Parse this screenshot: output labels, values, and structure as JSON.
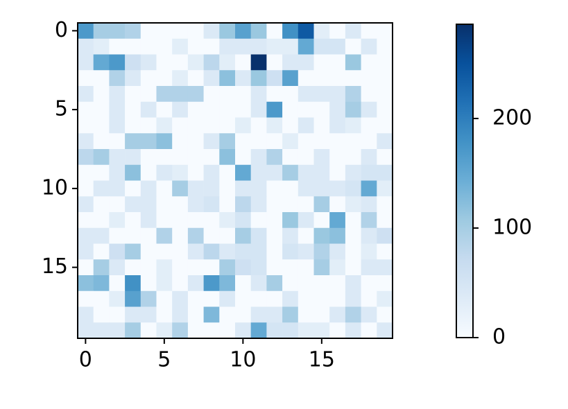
{
  "chart_data": {
    "type": "heatmap",
    "z": [
      [
        170,
        100,
        100,
        90,
        0,
        0,
        0,
        0,
        40,
        110,
        160,
        110,
        0,
        180,
        240,
        30,
        0,
        40,
        0,
        0
      ],
      [
        40,
        30,
        0,
        0,
        0,
        0,
        30,
        0,
        0,
        40,
        40,
        40,
        30,
        30,
        150,
        50,
        50,
        0,
        40,
        0
      ],
      [
        40,
        150,
        170,
        60,
        40,
        0,
        0,
        30,
        80,
        30,
        0,
        285,
        0,
        40,
        40,
        0,
        0,
        110,
        0,
        0
      ],
      [
        0,
        0,
        90,
        40,
        0,
        0,
        30,
        0,
        40,
        120,
        40,
        110,
        60,
        160,
        0,
        0,
        0,
        0,
        0,
        0
      ],
      [
        40,
        0,
        40,
        0,
        0,
        90,
        90,
        90,
        0,
        0,
        0,
        40,
        0,
        0,
        40,
        40,
        40,
        90,
        0,
        0
      ],
      [
        0,
        0,
        40,
        0,
        40,
        0,
        40,
        0,
        0,
        0,
        0,
        40,
        170,
        0,
        0,
        0,
        40,
        100,
        40,
        0
      ],
      [
        0,
        0,
        40,
        0,
        0,
        30,
        0,
        0,
        0,
        0,
        30,
        0,
        30,
        0,
        40,
        0,
        40,
        30,
        0,
        0
      ],
      [
        40,
        0,
        0,
        100,
        100,
        120,
        0,
        0,
        40,
        100,
        0,
        0,
        0,
        30,
        0,
        0,
        0,
        0,
        0,
        40
      ],
      [
        80,
        100,
        40,
        40,
        0,
        0,
        0,
        0,
        0,
        120,
        0,
        40,
        90,
        0,
        0,
        40,
        0,
        0,
        40,
        0
      ],
      [
        0,
        0,
        40,
        120,
        0,
        40,
        30,
        0,
        40,
        0,
        150,
        40,
        40,
        100,
        40,
        40,
        0,
        40,
        50,
        50
      ],
      [
        0,
        40,
        40,
        0,
        40,
        0,
        100,
        40,
        40,
        0,
        40,
        40,
        0,
        0,
        40,
        40,
        40,
        50,
        150,
        30
      ],
      [
        40,
        0,
        0,
        40,
        40,
        0,
        0,
        40,
        50,
        0,
        80,
        40,
        0,
        0,
        0,
        100,
        0,
        30,
        40,
        0
      ],
      [
        0,
        0,
        30,
        0,
        40,
        0,
        0,
        0,
        0,
        30,
        50,
        0,
        0,
        110,
        40,
        0,
        150,
        0,
        90,
        0
      ],
      [
        40,
        40,
        0,
        0,
        0,
        90,
        0,
        90,
        0,
        0,
        100,
        50,
        0,
        40,
        0,
        110,
        120,
        0,
        40,
        60
      ],
      [
        40,
        0,
        60,
        100,
        0,
        0,
        0,
        40,
        80,
        40,
        50,
        50,
        0,
        50,
        40,
        90,
        40,
        0,
        30,
        0
      ],
      [
        0,
        100,
        40,
        0,
        0,
        30,
        0,
        0,
        0,
        100,
        60,
        50,
        0,
        0,
        0,
        100,
        30,
        0,
        40,
        40
      ],
      [
        120,
        130,
        0,
        180,
        0,
        30,
        0,
        40,
        170,
        130,
        0,
        40,
        100,
        0,
        0,
        0,
        0,
        40,
        0,
        0
      ],
      [
        0,
        0,
        30,
        160,
        90,
        0,
        40,
        0,
        0,
        40,
        0,
        0,
        0,
        40,
        0,
        0,
        0,
        40,
        0,
        30
      ],
      [
        40,
        0,
        0,
        40,
        40,
        0,
        40,
        0,
        130,
        0,
        0,
        40,
        40,
        100,
        0,
        0,
        40,
        90,
        40,
        0
      ],
      [
        40,
        40,
        40,
        100,
        0,
        30,
        90,
        0,
        0,
        0,
        40,
        150,
        50,
        50,
        30,
        30,
        0,
        40,
        0,
        40
      ]
    ],
    "xlim": [
      -0.5,
      19.5
    ],
    "xticks": [
      0,
      5,
      10,
      15
    ],
    "ylim": [
      19.5,
      -0.5
    ],
    "yticks": [
      0,
      5,
      10,
      15
    ],
    "clim": [
      0,
      286
    ],
    "cticks": [
      0,
      100,
      200
    ],
    "colormap": [
      "#f7fbff",
      "#deebf7",
      "#c6dbef",
      "#9ecae1",
      "#6baed6",
      "#4292c6",
      "#2171b5",
      "#08519c",
      "#08306b"
    ]
  }
}
